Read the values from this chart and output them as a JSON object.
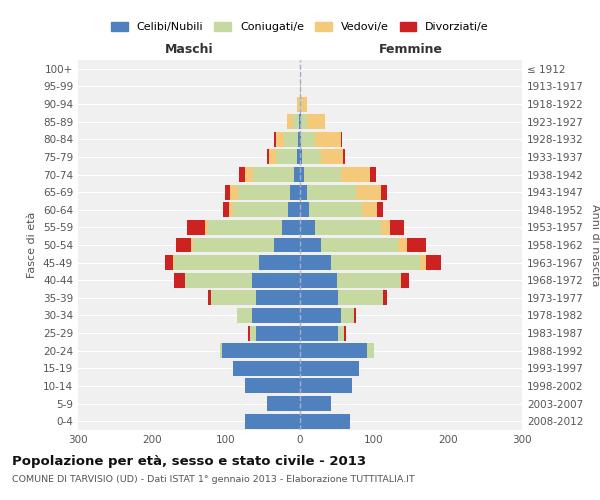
{
  "age_groups": [
    "0-4",
    "5-9",
    "10-14",
    "15-19",
    "20-24",
    "25-29",
    "30-34",
    "35-39",
    "40-44",
    "45-49",
    "50-54",
    "55-59",
    "60-64",
    "65-69",
    "70-74",
    "75-79",
    "80-84",
    "85-89",
    "90-94",
    "95-99",
    "100+"
  ],
  "birth_years": [
    "2008-2012",
    "2003-2007",
    "1998-2002",
    "1993-1997",
    "1988-1992",
    "1983-1987",
    "1978-1982",
    "1973-1977",
    "1968-1972",
    "1963-1967",
    "1958-1962",
    "1953-1957",
    "1948-1952",
    "1943-1947",
    "1938-1942",
    "1933-1937",
    "1928-1932",
    "1923-1927",
    "1918-1922",
    "1913-1917",
    "≤ 1912"
  ],
  "colors": {
    "celibi": "#4e81bd",
    "coniugati": "#c5d9a0",
    "vedovi": "#f5c97a",
    "divorziati": "#cc2222"
  },
  "maschi": {
    "celibi": [
      75,
      45,
      75,
      90,
      105,
      60,
      65,
      60,
      65,
      55,
      35,
      25,
      16,
      14,
      8,
      4,
      3,
      1,
      0,
      0,
      0
    ],
    "coniugati": [
      0,
      0,
      0,
      0,
      3,
      8,
      20,
      60,
      90,
      115,
      110,
      100,
      75,
      70,
      55,
      28,
      18,
      8,
      2,
      0,
      0
    ],
    "vedovi": [
      0,
      0,
      0,
      0,
      0,
      0,
      0,
      0,
      0,
      2,
      2,
      3,
      5,
      10,
      12,
      10,
      12,
      8,
      2,
      0,
      0
    ],
    "divorziati": [
      0,
      0,
      0,
      0,
      0,
      2,
      0,
      5,
      15,
      10,
      20,
      25,
      8,
      8,
      8,
      2,
      2,
      0,
      0,
      0,
      0
    ]
  },
  "femmine": {
    "nubili": [
      68,
      42,
      70,
      80,
      90,
      52,
      55,
      52,
      50,
      42,
      28,
      20,
      12,
      10,
      5,
      3,
      2,
      1,
      0,
      0,
      0
    ],
    "coniugate": [
      0,
      0,
      0,
      0,
      10,
      8,
      18,
      60,
      85,
      120,
      105,
      90,
      72,
      65,
      50,
      25,
      18,
      8,
      2,
      0,
      0
    ],
    "vedove": [
      0,
      0,
      0,
      0,
      0,
      0,
      0,
      0,
      2,
      8,
      12,
      12,
      20,
      35,
      40,
      30,
      35,
      25,
      8,
      2,
      0
    ],
    "divorziate": [
      0,
      0,
      0,
      0,
      0,
      2,
      2,
      5,
      10,
      20,
      25,
      18,
      8,
      8,
      8,
      3,
      2,
      0,
      0,
      0,
      0
    ]
  },
  "xlim": 300,
  "title": "Popolazione per età, sesso e stato civile - 2013",
  "subtitle": "COMUNE DI TARVISIO (UD) - Dati ISTAT 1° gennaio 2013 - Elaborazione TUTTITALIA.IT",
  "xlabel_left": "Maschi",
  "xlabel_right": "Femmine",
  "ylabel": "Fasce di età",
  "ylabel_right": "Anni di nascita",
  "legend_labels": [
    "Celibi/Nubili",
    "Coniugati/e",
    "Vedovi/e",
    "Divorziati/e"
  ],
  "bg_color": "#ffffff",
  "plot_bg": "#f0f0f0",
  "grid_color": "#ffffff"
}
